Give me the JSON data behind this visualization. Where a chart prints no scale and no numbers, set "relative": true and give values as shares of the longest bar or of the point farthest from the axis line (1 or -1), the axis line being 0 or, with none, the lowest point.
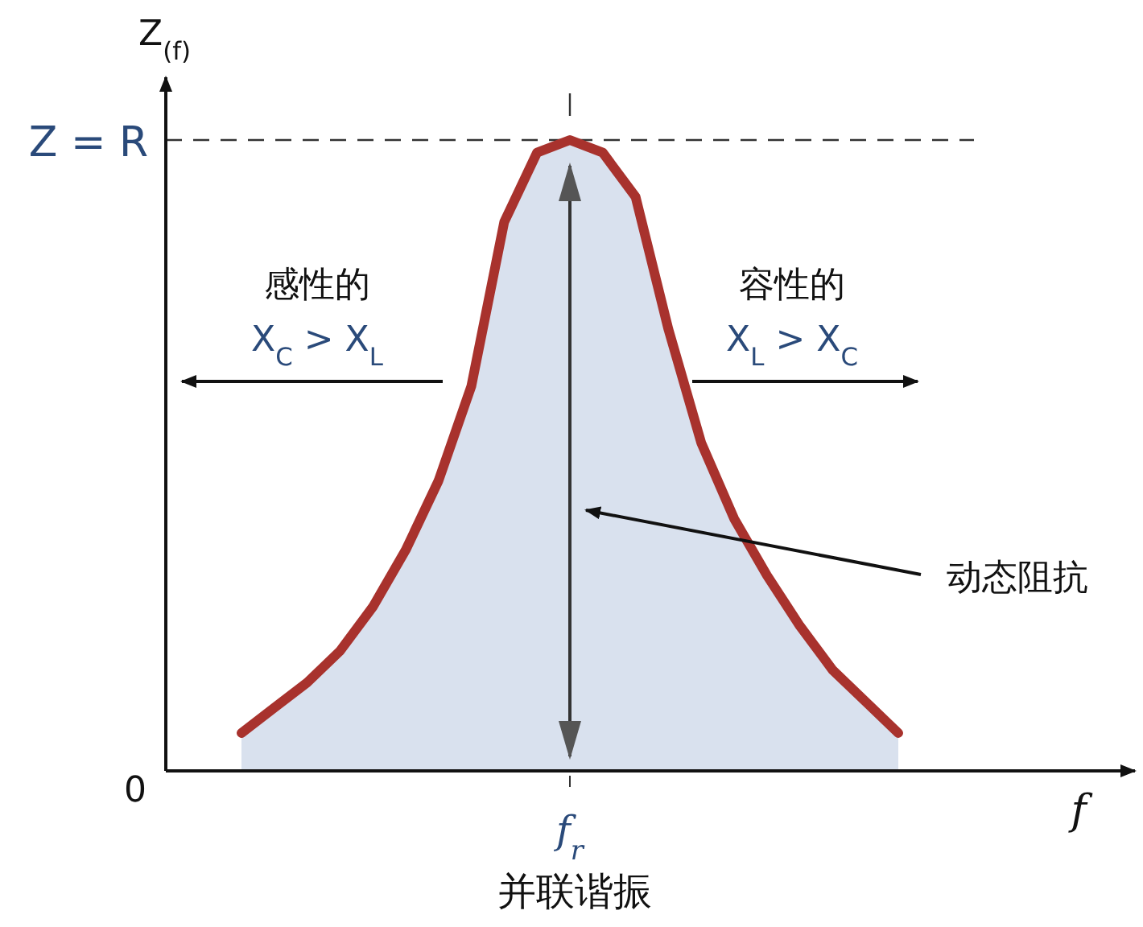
{
  "chart_data": {
    "type": "area",
    "relative": true,
    "ylabel": "Z$_{(f)}$",
    "xlabel": "f",
    "color": "#a8322d",
    "categories": [
      null,
      null,
      null,
      null,
      null,
      null,
      null,
      null,
      null,
      null,
      null,
      null,
      null,
      null,
      null,
      null,
      null,
      null,
      null,
      null,
      null
    ],
    "values": [
      0.06,
      0.1,
      0.14,
      0.19,
      0.26,
      0.35,
      0.46,
      0.61,
      0.87,
      0.98,
      1,
      0.98,
      0.91,
      0.7,
      0.52,
      0.4,
      0.31,
      0.23,
      0.16,
      0.11,
      0.06
    ],
    "ref_lines": [
      {
        "axis": "y",
        "value": 1,
        "label": "Z = R",
        "line_style": "dashed",
        "color": "#333333"
      }
    ],
    "annotations": [
      "感性的",
      "X$_{C}$ > X$_{L}$",
      "容性的",
      "X$_{L}$ > X$_{C}$",
      "动态阻抗",
      "0",
      "并联谐振",
      "f$_{r}$"
    ]
  }
}
